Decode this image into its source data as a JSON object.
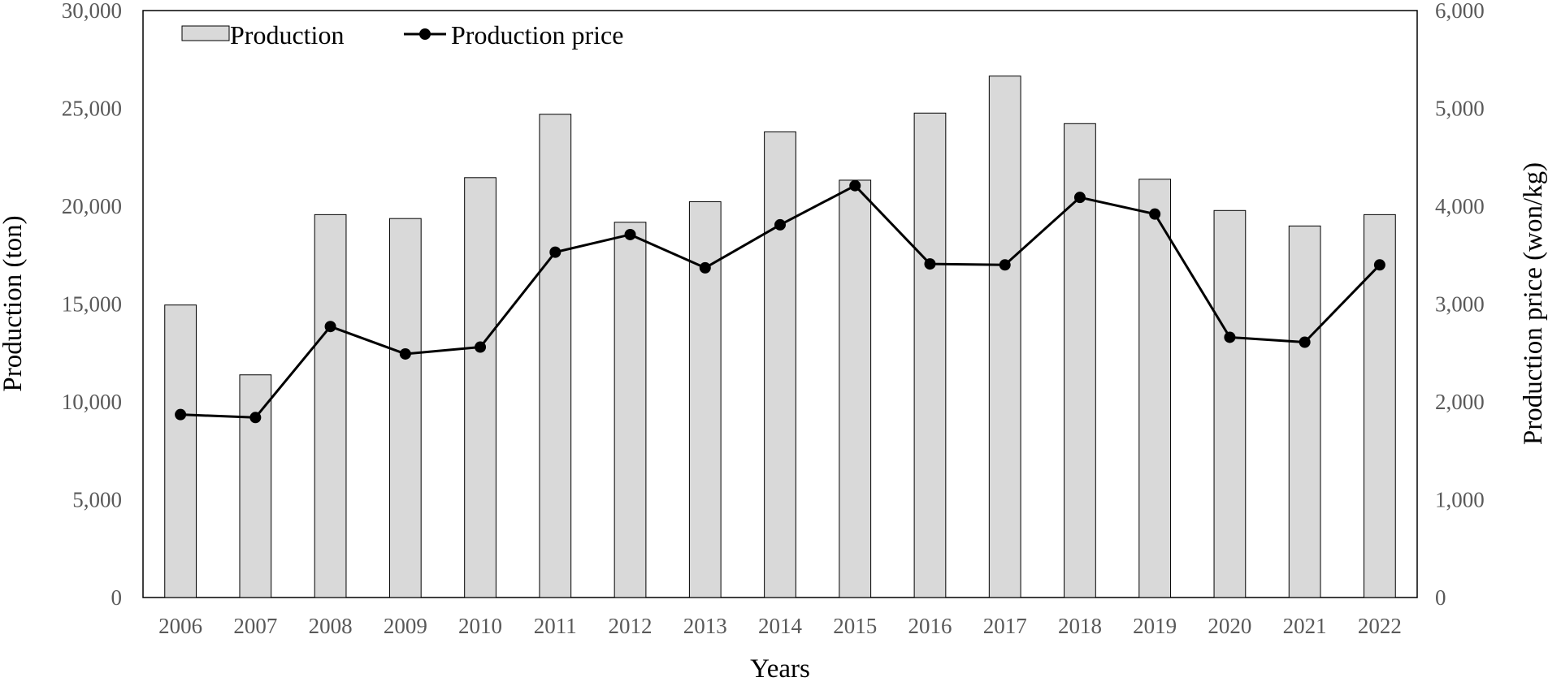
{
  "chart_data": {
    "type": "bar",
    "categories": [
      "2006",
      "2007",
      "2008",
      "2009",
      "2010",
      "2011",
      "2012",
      "2013",
      "2014",
      "2015",
      "2016",
      "2017",
      "2018",
      "2019",
      "2020",
      "2021",
      "2022"
    ],
    "series": [
      {
        "name": "Production",
        "type": "bar",
        "axis": "left",
        "color": "#d9d9d9",
        "values": [
          14950,
          11380,
          19570,
          19370,
          21460,
          24700,
          19180,
          20230,
          23800,
          21330,
          24760,
          26650,
          24220,
          21380,
          19780,
          18990,
          19570
        ]
      },
      {
        "name": "Production price",
        "type": "line",
        "axis": "right",
        "color": "#000000",
        "values": [
          1870,
          1840,
          2770,
          2490,
          2560,
          3530,
          3710,
          3370,
          3810,
          4210,
          3410,
          3400,
          4090,
          3920,
          2660,
          2610,
          3400
        ]
      }
    ],
    "xlabel": "Years",
    "ylabel": "Production (ton)",
    "y2label": "Production price (won/kg)",
    "ylim": [
      0,
      30000
    ],
    "y2lim": [
      0,
      6000
    ],
    "yticks": [
      "0",
      "5,000",
      "10,000",
      "15,000",
      "20,000",
      "25,000",
      "30,000"
    ],
    "y2ticks": [
      "0",
      "1,000",
      "2,000",
      "3,000",
      "4,000",
      "5,000",
      "6,000"
    ],
    "grid": false,
    "legend_position": "top-left"
  }
}
